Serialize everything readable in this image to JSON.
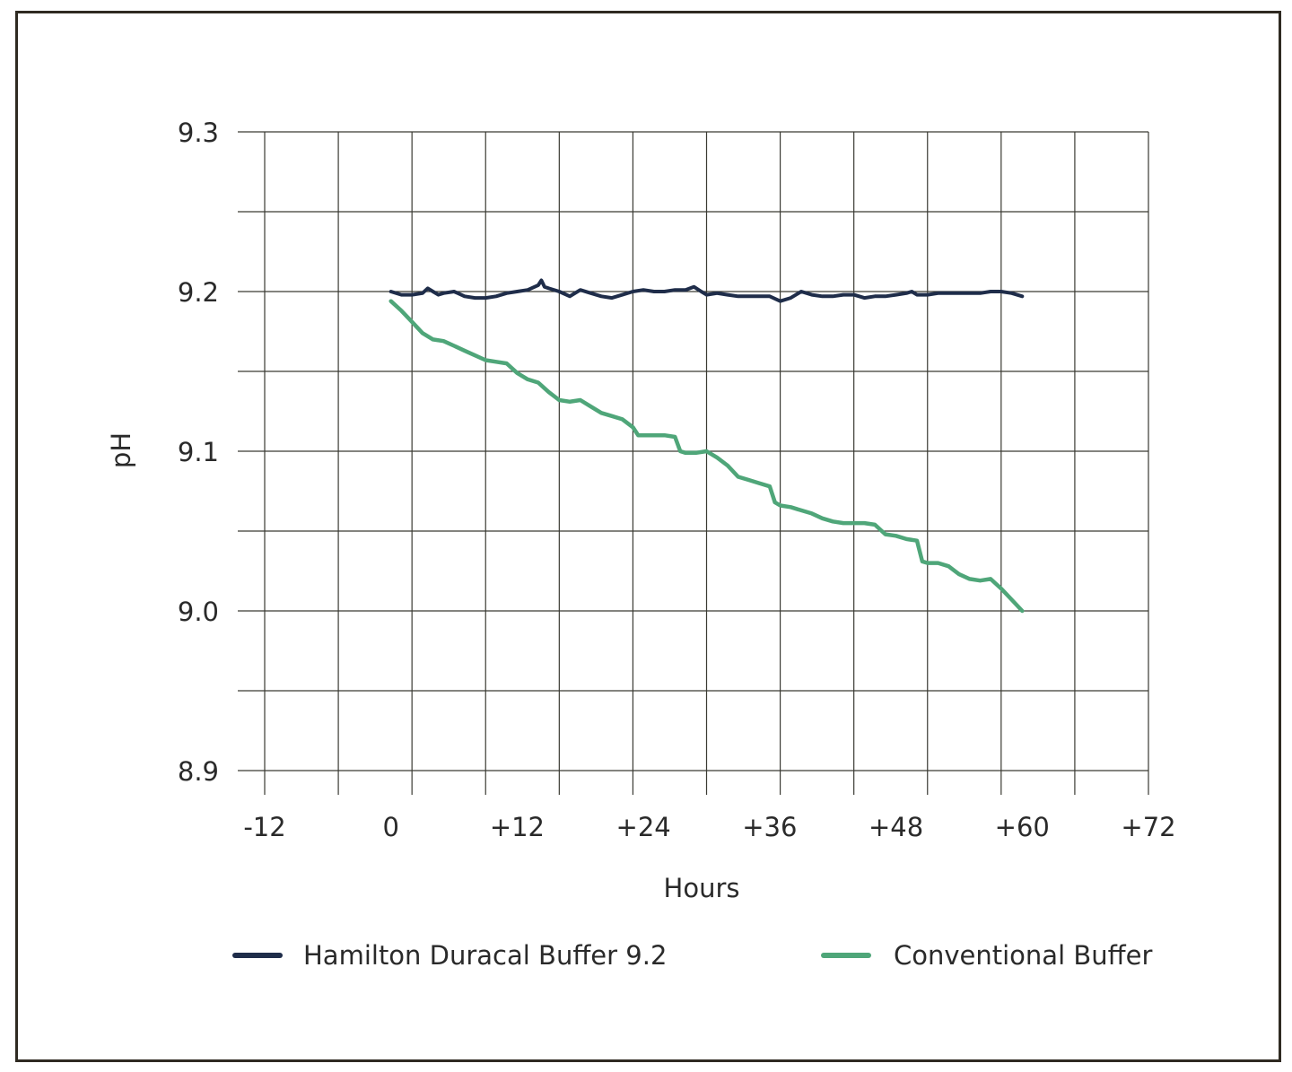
{
  "chart_data": {
    "type": "line",
    "title": "",
    "xlabel": "Hours",
    "ylabel": "pH",
    "xlim": [
      -12,
      72
    ],
    "ylim": [
      8.9,
      9.3
    ],
    "x_ticks": [
      -12,
      0,
      12,
      24,
      36,
      48,
      60,
      72
    ],
    "x_tick_labels": [
      "-12",
      "0",
      "+12",
      "+24",
      "+36",
      "+48",
      "+60",
      "+72"
    ],
    "y_ticks": [
      8.9,
      9.0,
      9.1,
      9.2,
      9.3
    ],
    "y_tick_labels": [
      "8.9",
      "9.0",
      "9.1",
      "9.2",
      "9.3"
    ],
    "grid": true,
    "legend_position": "bottom",
    "series": [
      {
        "name": "Hamilton Duracal Buffer 9.2",
        "color": "#1f2d4a",
        "x": [
          0,
          1,
          2,
          3,
          3.5,
          4,
          4.5,
          5,
          6,
          7,
          8,
          9,
          10,
          11,
          12,
          13,
          14,
          14.3,
          14.6,
          15,
          16,
          17,
          18,
          19,
          20,
          21,
          22,
          23,
          24,
          25,
          26,
          27,
          28,
          28.8,
          29.5,
          30,
          31,
          32,
          33,
          34,
          35,
          36,
          37,
          38,
          39,
          40,
          41,
          42,
          43,
          44,
          45,
          46,
          47,
          48,
          49,
          49.5,
          50,
          51,
          52,
          53,
          54,
          55,
          56,
          57,
          58,
          59,
          60
        ],
        "y": [
          9.2,
          9.198,
          9.198,
          9.199,
          9.202,
          9.2,
          9.198,
          9.199,
          9.2,
          9.197,
          9.196,
          9.196,
          9.197,
          9.199,
          9.2,
          9.201,
          9.204,
          9.207,
          9.203,
          9.202,
          9.2,
          9.197,
          9.201,
          9.199,
          9.197,
          9.196,
          9.198,
          9.2,
          9.201,
          9.2,
          9.2,
          9.201,
          9.201,
          9.203,
          9.2,
          9.198,
          9.199,
          9.198,
          9.197,
          9.197,
          9.197,
          9.197,
          9.194,
          9.196,
          9.2,
          9.198,
          9.197,
          9.197,
          9.198,
          9.198,
          9.196,
          9.197,
          9.197,
          9.198,
          9.199,
          9.2,
          9.198,
          9.198,
          9.199,
          9.199,
          9.199,
          9.199,
          9.199,
          9.2,
          9.2,
          9.199,
          9.197
        ]
      },
      {
        "name": "Conventional Buffer",
        "color": "#4fa679",
        "x": [
          0,
          1,
          2,
          3,
          4,
          5,
          6,
          7,
          8,
          9,
          10,
          11,
          12,
          13,
          14,
          15,
          16,
          17,
          18,
          19,
          20,
          21,
          22,
          23,
          23.5,
          24,
          25,
          26,
          27,
          27.5,
          28,
          29,
          30,
          31,
          32,
          33,
          34,
          35,
          36,
          36.5,
          37,
          38,
          39,
          40,
          41,
          42,
          43,
          44,
          45,
          46,
          47,
          48,
          49,
          50,
          50.5,
          51,
          52,
          53,
          54,
          55,
          56,
          57,
          58,
          59,
          60
        ],
        "y": [
          9.194,
          9.188,
          9.181,
          9.174,
          9.17,
          9.169,
          9.166,
          9.163,
          9.16,
          9.157,
          9.156,
          9.155,
          9.149,
          9.145,
          9.143,
          9.137,
          9.132,
          9.131,
          9.132,
          9.128,
          9.124,
          9.122,
          9.12,
          9.115,
          9.11,
          9.11,
          9.11,
          9.11,
          9.109,
          9.1,
          9.099,
          9.099,
          9.1,
          9.096,
          9.091,
          9.084,
          9.082,
          9.08,
          9.078,
          9.068,
          9.066,
          9.065,
          9.063,
          9.061,
          9.058,
          9.056,
          9.055,
          9.055,
          9.055,
          9.054,
          9.048,
          9.047,
          9.045,
          9.044,
          9.031,
          9.03,
          9.03,
          9.028,
          9.023,
          9.02,
          9.019,
          9.02,
          9.014,
          9.007,
          9.0
        ]
      }
    ]
  }
}
